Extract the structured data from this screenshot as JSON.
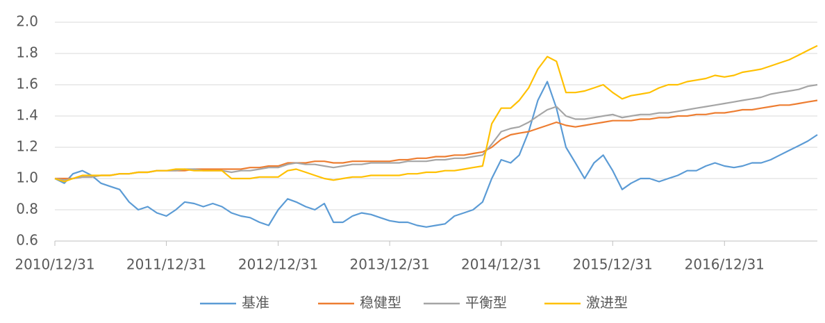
{
  "chart_data": {
    "type": "line",
    "x": [
      "2010/12/31",
      "2011/01/31",
      "2011/02/28",
      "2011/03/31",
      "2011/04/30",
      "2011/05/31",
      "2011/06/30",
      "2011/07/31",
      "2011/08/31",
      "2011/09/30",
      "2011/10/31",
      "2011/11/30",
      "2011/12/31",
      "2012/01/31",
      "2012/02/29",
      "2012/03/31",
      "2012/04/30",
      "2012/05/31",
      "2012/06/30",
      "2012/07/31",
      "2012/08/31",
      "2012/09/30",
      "2012/10/31",
      "2012/11/30",
      "2012/12/31",
      "2013/01/31",
      "2013/02/28",
      "2013/03/31",
      "2013/04/30",
      "2013/05/31",
      "2013/06/30",
      "2013/07/31",
      "2013/08/31",
      "2013/09/30",
      "2013/10/31",
      "2013/11/30",
      "2013/12/31",
      "2014/01/31",
      "2014/02/28",
      "2014/03/31",
      "2014/04/30",
      "2014/05/31",
      "2014/06/30",
      "2014/07/31",
      "2014/08/31",
      "2014/09/30",
      "2014/10/31",
      "2014/11/30",
      "2014/12/31",
      "2015/01/31",
      "2015/02/28",
      "2015/03/31",
      "2015/04/30",
      "2015/05/31",
      "2015/06/30",
      "2015/07/31",
      "2015/08/31",
      "2015/09/30",
      "2015/10/31",
      "2015/11/30",
      "2015/12/31",
      "2016/01/31",
      "2016/02/29",
      "2016/03/31",
      "2016/04/30",
      "2016/05/31",
      "2016/06/30",
      "2016/07/31",
      "2016/08/31",
      "2016/09/30",
      "2016/10/31",
      "2016/11/30",
      "2016/12/31",
      "2017/01/31",
      "2017/02/28",
      "2017/03/31",
      "2017/04/30",
      "2017/05/31",
      "2017/06/30",
      "2017/07/31",
      "2017/08/31",
      "2017/09/30",
      "2017/10/31"
    ],
    "series": [
      {
        "name": "基准",
        "color": "#5b9bd5",
        "values": [
          1.0,
          0.97,
          1.03,
          1.05,
          1.02,
          0.97,
          0.95,
          0.93,
          0.85,
          0.8,
          0.82,
          0.78,
          0.76,
          0.8,
          0.85,
          0.84,
          0.82,
          0.84,
          0.82,
          0.78,
          0.76,
          0.75,
          0.72,
          0.7,
          0.8,
          0.87,
          0.85,
          0.82,
          0.8,
          0.84,
          0.72,
          0.72,
          0.76,
          0.78,
          0.77,
          0.75,
          0.73,
          0.72,
          0.72,
          0.7,
          0.69,
          0.7,
          0.71,
          0.76,
          0.78,
          0.8,
          0.85,
          1.0,
          1.12,
          1.1,
          1.15,
          1.3,
          1.5,
          1.62,
          1.45,
          1.2,
          1.1,
          1.0,
          1.1,
          1.15,
          1.05,
          0.93,
          0.97,
          1.0,
          1.0,
          0.98,
          1.0,
          1.02,
          1.05,
          1.05,
          1.08,
          1.1,
          1.08,
          1.07,
          1.08,
          1.1,
          1.1,
          1.12,
          1.15,
          1.18,
          1.21,
          1.24,
          1.28
        ]
      },
      {
        "name": "稳健型",
        "color": "#ed7d31",
        "values": [
          1.0,
          1.0,
          1.0,
          1.01,
          1.01,
          1.02,
          1.02,
          1.03,
          1.03,
          1.04,
          1.04,
          1.05,
          1.05,
          1.05,
          1.05,
          1.06,
          1.06,
          1.06,
          1.06,
          1.06,
          1.06,
          1.07,
          1.07,
          1.08,
          1.08,
          1.1,
          1.1,
          1.1,
          1.11,
          1.11,
          1.1,
          1.1,
          1.11,
          1.11,
          1.11,
          1.11,
          1.11,
          1.12,
          1.12,
          1.13,
          1.13,
          1.14,
          1.14,
          1.15,
          1.15,
          1.16,
          1.17,
          1.2,
          1.25,
          1.28,
          1.29,
          1.3,
          1.32,
          1.34,
          1.36,
          1.34,
          1.33,
          1.34,
          1.35,
          1.36,
          1.37,
          1.37,
          1.37,
          1.38,
          1.38,
          1.39,
          1.39,
          1.4,
          1.4,
          1.41,
          1.41,
          1.42,
          1.42,
          1.43,
          1.44,
          1.44,
          1.45,
          1.46,
          1.47,
          1.47,
          1.48,
          1.49,
          1.5
        ]
      },
      {
        "name": "平衡型",
        "color": "#a5a5a5",
        "values": [
          1.0,
          0.99,
          1.0,
          1.01,
          1.01,
          1.02,
          1.02,
          1.03,
          1.03,
          1.04,
          1.04,
          1.05,
          1.05,
          1.05,
          1.06,
          1.06,
          1.05,
          1.05,
          1.05,
          1.04,
          1.05,
          1.05,
          1.06,
          1.07,
          1.07,
          1.09,
          1.1,
          1.09,
          1.09,
          1.08,
          1.07,
          1.08,
          1.09,
          1.09,
          1.1,
          1.1,
          1.1,
          1.1,
          1.11,
          1.11,
          1.11,
          1.12,
          1.12,
          1.13,
          1.13,
          1.14,
          1.15,
          1.22,
          1.3,
          1.32,
          1.33,
          1.36,
          1.4,
          1.44,
          1.46,
          1.4,
          1.38,
          1.38,
          1.39,
          1.4,
          1.41,
          1.39,
          1.4,
          1.41,
          1.41,
          1.42,
          1.42,
          1.43,
          1.44,
          1.45,
          1.46,
          1.47,
          1.48,
          1.49,
          1.5,
          1.51,
          1.52,
          1.54,
          1.55,
          1.56,
          1.57,
          1.59,
          1.6
        ]
      },
      {
        "name": "激进型",
        "color": "#ffc000",
        "values": [
          1.0,
          0.98,
          1.0,
          1.02,
          1.02,
          1.02,
          1.02,
          1.03,
          1.03,
          1.04,
          1.04,
          1.05,
          1.05,
          1.06,
          1.06,
          1.05,
          1.05,
          1.05,
          1.05,
          1.0,
          1.0,
          1.0,
          1.01,
          1.01,
          1.01,
          1.05,
          1.06,
          1.04,
          1.02,
          1.0,
          0.99,
          1.0,
          1.01,
          1.01,
          1.02,
          1.02,
          1.02,
          1.02,
          1.03,
          1.03,
          1.04,
          1.04,
          1.05,
          1.05,
          1.06,
          1.07,
          1.08,
          1.35,
          1.45,
          1.45,
          1.5,
          1.58,
          1.7,
          1.78,
          1.75,
          1.55,
          1.55,
          1.56,
          1.58,
          1.6,
          1.55,
          1.51,
          1.53,
          1.54,
          1.55,
          1.58,
          1.6,
          1.6,
          1.62,
          1.63,
          1.64,
          1.66,
          1.65,
          1.66,
          1.68,
          1.69,
          1.7,
          1.72,
          1.74,
          1.76,
          1.79,
          1.82,
          1.85
        ]
      }
    ],
    "xlim": [
      "2010/12/31",
      "2017/10/31"
    ],
    "xticks": [
      "2010/12/31",
      "2011/12/31",
      "2012/12/31",
      "2013/12/31",
      "2014/12/31",
      "2015/12/31",
      "2016/12/31"
    ],
    "ylim": [
      0.6,
      2.0
    ],
    "yticks": [
      0.6,
      0.8,
      {
        "value": 1.0,
        "label": "1.0"
      },
      1.2,
      1.4,
      1.6,
      1.8,
      {
        "value": 2.0,
        "label": "2.0"
      }
    ],
    "grid": true,
    "legend": "bottom"
  }
}
